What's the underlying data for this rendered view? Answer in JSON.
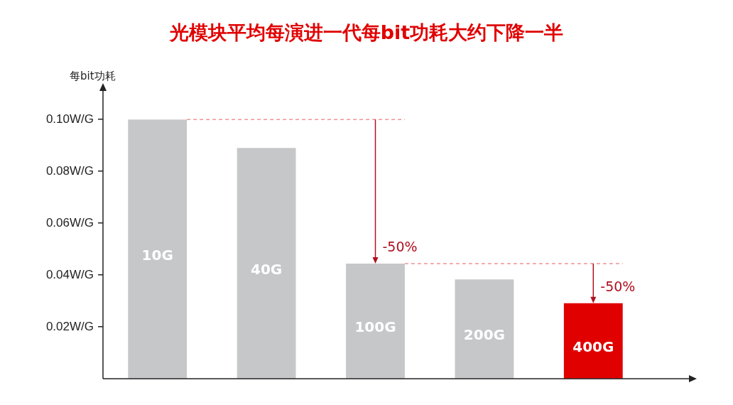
{
  "chart_data": {
    "type": "bar",
    "title": "光模块平均每演进一代每bit功耗大约下降一半",
    "ylabel": "每bit功耗",
    "categories": [
      "10G",
      "40G",
      "100G",
      "200G",
      "400G"
    ],
    "values": [
      0.1,
      0.089,
      0.0444,
      0.0383,
      0.0291
    ],
    "colors": [
      "#c6c7c9",
      "#c6c7c9",
      "#c6c7c9",
      "#c6c7c9",
      "#e00000"
    ],
    "ylim": [
      0,
      0.111
    ],
    "yticks": [
      {
        "value": 0.02,
        "label": "0.02W/G"
      },
      {
        "value": 0.04,
        "label": "0.04W/G"
      },
      {
        "value": 0.06,
        "label": "0.06W/G"
      },
      {
        "value": 0.08,
        "label": "0.08W/G"
      },
      {
        "value": 0.1,
        "label": "0.10W/G"
      }
    ],
    "ref_lines": [
      {
        "axis": "y",
        "value": 0.1,
        "color": "#e06060",
        "line_style": "dashed"
      },
      {
        "axis": "y",
        "value": 0.0444,
        "color": "#e06060",
        "line_style": "dashed"
      }
    ],
    "annotations": [
      {
        "text": "-50%",
        "x": "100G",
        "y": 0.0444
      },
      {
        "text": "-50%",
        "x": "400G",
        "y": 0.0291
      }
    ],
    "tick_labels": "y",
    "grid": false,
    "legend": false
  }
}
